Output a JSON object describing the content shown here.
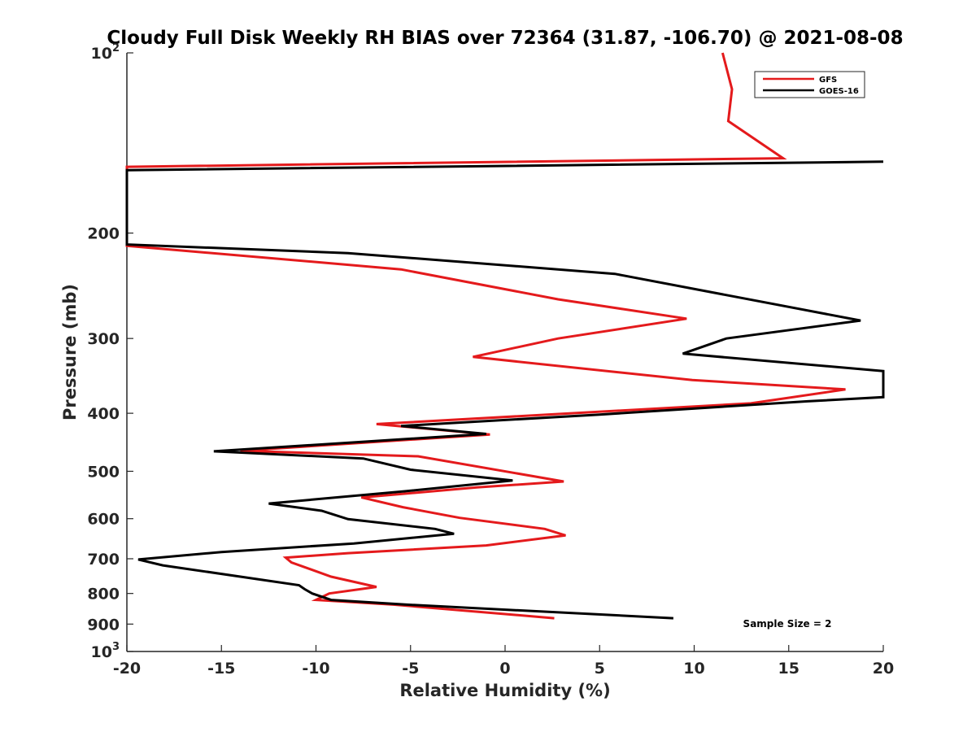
{
  "chart_data": {
    "type": "line",
    "title": "Cloudy Full Disk Weekly RH BIAS over 72364 (31.87, -106.70) @ 2021-08-08",
    "xlabel": "Relative Humidity (%)",
    "ylabel": "Pressure (mb)",
    "xlim": [
      -20,
      20
    ],
    "ylim": [
      100,
      1000
    ],
    "y_scale": "log",
    "y_reversed": true,
    "grid": false,
    "legend_position": "top-right",
    "x_ticks": [
      "-20",
      "-15",
      "-10",
      "-5",
      "0",
      "5",
      "10",
      "15",
      "20"
    ],
    "y_ticks": [
      {
        "value": 100,
        "base": "10",
        "exp": "2"
      },
      {
        "value": 200,
        "label": "200"
      },
      {
        "value": 300,
        "label": "300"
      },
      {
        "value": 400,
        "label": "400"
      },
      {
        "value": 500,
        "label": "500"
      },
      {
        "value": 600,
        "label": "600"
      },
      {
        "value": 700,
        "label": "700"
      },
      {
        "value": 800,
        "label": "800"
      },
      {
        "value": 900,
        "label": "900"
      },
      {
        "value": 1000,
        "base": "10",
        "exp": "3"
      }
    ],
    "annotation": "Sample Size = 2",
    "series": [
      {
        "name": "GFS",
        "color": "#e41a1c",
        "points": [
          [
            11.5,
            100
          ],
          [
            12.0,
            115
          ],
          [
            11.8,
            130
          ],
          [
            14.7,
            150
          ],
          [
            -20,
            155
          ],
          [
            -20,
            210
          ],
          [
            -5.5,
            230
          ],
          [
            2.8,
            258
          ],
          [
            9.6,
            278
          ],
          [
            2.8,
            300
          ],
          [
            -1.7,
            322
          ],
          [
            9.9,
            352
          ],
          [
            18.0,
            365
          ],
          [
            13.0,
            385
          ],
          [
            -6.8,
            417
          ],
          [
            -0.8,
            434
          ],
          [
            -14.0,
            462
          ],
          [
            -4.6,
            472
          ],
          [
            3.1,
            520
          ],
          [
            -1.5,
            532
          ],
          [
            -7.6,
            553
          ],
          [
            -5.4,
            574
          ],
          [
            -2.4,
            598
          ],
          [
            2.1,
            624
          ],
          [
            3.2,
            640
          ],
          [
            -1.0,
            665
          ],
          [
            -8.3,
            685
          ],
          [
            -11.6,
            697
          ],
          [
            -11.3,
            710
          ],
          [
            -9.2,
            750
          ],
          [
            -6.8,
            780
          ],
          [
            -9.3,
            800
          ],
          [
            -10.0,
            820
          ],
          [
            -5.9,
            835
          ],
          [
            2.6,
            880
          ]
        ]
      },
      {
        "name": "GOES-16",
        "color": "#000000",
        "points": [
          [
            20,
            152
          ],
          [
            -20,
            157
          ],
          [
            -20,
            209
          ],
          [
            -8.3,
            216
          ],
          [
            5.8,
            234
          ],
          [
            18.8,
            280
          ],
          [
            11.7,
            300
          ],
          [
            9.4,
            318
          ],
          [
            20,
            340
          ],
          [
            20,
            376
          ],
          [
            16.0,
            382
          ],
          [
            5.0,
            402
          ],
          [
            -5.5,
            420
          ],
          [
            -1.0,
            433
          ],
          [
            -15.4,
            463
          ],
          [
            -7.5,
            476
          ],
          [
            -5.0,
            497
          ],
          [
            0.4,
            518
          ],
          [
            -5.3,
            540
          ],
          [
            -12.5,
            566
          ],
          [
            -9.7,
            582
          ],
          [
            -8.3,
            601
          ],
          [
            -3.7,
            624
          ],
          [
            -2.7,
            636
          ],
          [
            -8.0,
            660
          ],
          [
            -15.0,
            682
          ],
          [
            -19.4,
            702
          ],
          [
            -18.1,
            718
          ],
          [
            -10.9,
            775
          ],
          [
            -10.6,
            787
          ],
          [
            -10.2,
            800
          ],
          [
            -9.2,
            820
          ],
          [
            -5.2,
            835
          ],
          [
            8.9,
            880
          ]
        ]
      }
    ]
  }
}
